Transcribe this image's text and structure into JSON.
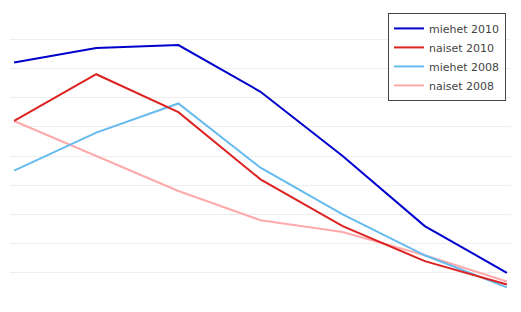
{
  "chart_data": {
    "type": "line",
    "x": [
      0,
      1,
      2,
      3,
      4,
      5,
      6
    ],
    "series": [
      {
        "name": "miehet 2010",
        "color": "#0000CC",
        "values": [
          82,
          87,
          88,
          72,
          50,
          26,
          10
        ]
      },
      {
        "name": "naiset 2010",
        "color": "#DD2222",
        "values": [
          62,
          78,
          65,
          42,
          26,
          14,
          6
        ]
      },
      {
        "name": "miehet 2008",
        "color": "#66BBEE",
        "values": [
          45,
          58,
          68,
          46,
          30,
          16,
          5
        ]
      },
      {
        "name": "naiset 2008",
        "color": "#FFAAAA",
        "values": [
          62,
          50,
          38,
          28,
          24,
          16,
          7
        ]
      }
    ],
    "xlim": [
      -0.05,
      6.05
    ],
    "ylim": [
      0,
      100
    ],
    "yticks": [
      0,
      10,
      20,
      30,
      40,
      50,
      60,
      70,
      80,
      90,
      100
    ],
    "grid": true,
    "legend": "upper right",
    "tick_labels": false
  }
}
